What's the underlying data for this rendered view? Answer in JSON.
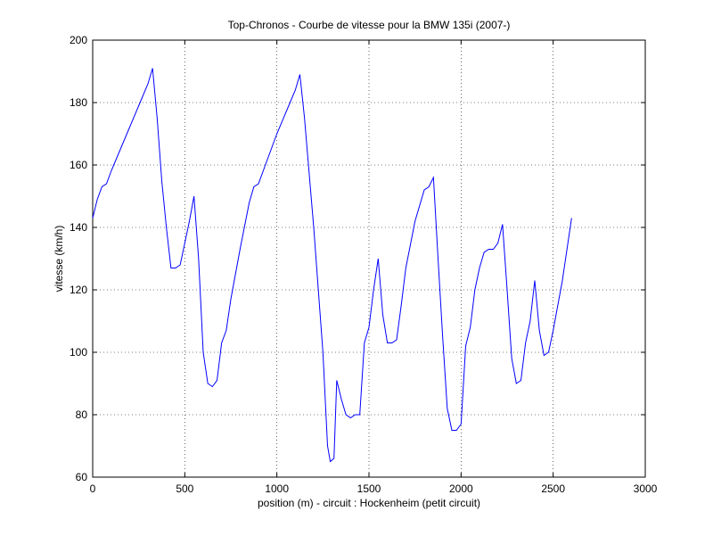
{
  "chart_data": {
    "type": "line",
    "title": "Top-Chronos - Courbe de vitesse pour la BMW 135i (2007-)",
    "x_label": "position (m) - circuit : Hockenheim (petit circuit)",
    "y_label": "vitesse (km/h)",
    "x": [
      0,
      25,
      50,
      75,
      100,
      150,
      200,
      250,
      300,
      325,
      350,
      375,
      400,
      425,
      450,
      475,
      500,
      525,
      550,
      575,
      600,
      625,
      650,
      675,
      700,
      725,
      750,
      800,
      850,
      875,
      900,
      950,
      1000,
      1050,
      1100,
      1125,
      1150,
      1200,
      1250,
      1275,
      1290,
      1310,
      1325,
      1350,
      1375,
      1400,
      1425,
      1450,
      1475,
      1500,
      1525,
      1550,
      1575,
      1600,
      1625,
      1650,
      1675,
      1700,
      1750,
      1800,
      1825,
      1850,
      1875,
      1900,
      1925,
      1950,
      1975,
      2000,
      2025,
      2050,
      2075,
      2100,
      2125,
      2150,
      2175,
      2200,
      2225,
      2250,
      2275,
      2300,
      2325,
      2350,
      2375,
      2400,
      2425,
      2450,
      2475,
      2500,
      2550,
      2600
    ],
    "series": [
      {
        "name": "vitesse",
        "color": "#0000ff",
        "values": [
          143,
          149,
          153,
          154,
          158,
          165,
          172,
          179,
          186,
          191,
          175,
          155,
          140,
          127,
          127,
          128,
          135,
          142,
          150,
          130,
          100,
          90,
          89,
          91,
          103,
          107,
          117,
          133,
          148,
          153,
          154,
          162,
          170,
          177,
          184,
          189,
          175,
          140,
          100,
          70,
          65,
          66,
          91,
          85,
          80,
          79,
          80,
          80,
          103,
          108,
          120,
          130,
          112,
          103,
          103,
          104,
          115,
          127,
          142,
          152,
          153,
          156,
          130,
          105,
          82,
          75,
          75,
          77,
          102,
          108,
          120,
          127,
          132,
          133,
          133,
          135,
          141,
          120,
          98,
          90,
          91,
          103,
          110,
          123,
          107,
          99,
          100,
          107,
          123,
          143
        ]
      }
    ],
    "xlim": [
      0,
      3000
    ],
    "xticks": [
      0,
      500,
      1000,
      1500,
      2000,
      2500,
      3000
    ],
    "ylim": [
      60,
      200
    ],
    "yticks": [
      60,
      80,
      100,
      120,
      140,
      160,
      180,
      200
    ],
    "grid": true
  }
}
